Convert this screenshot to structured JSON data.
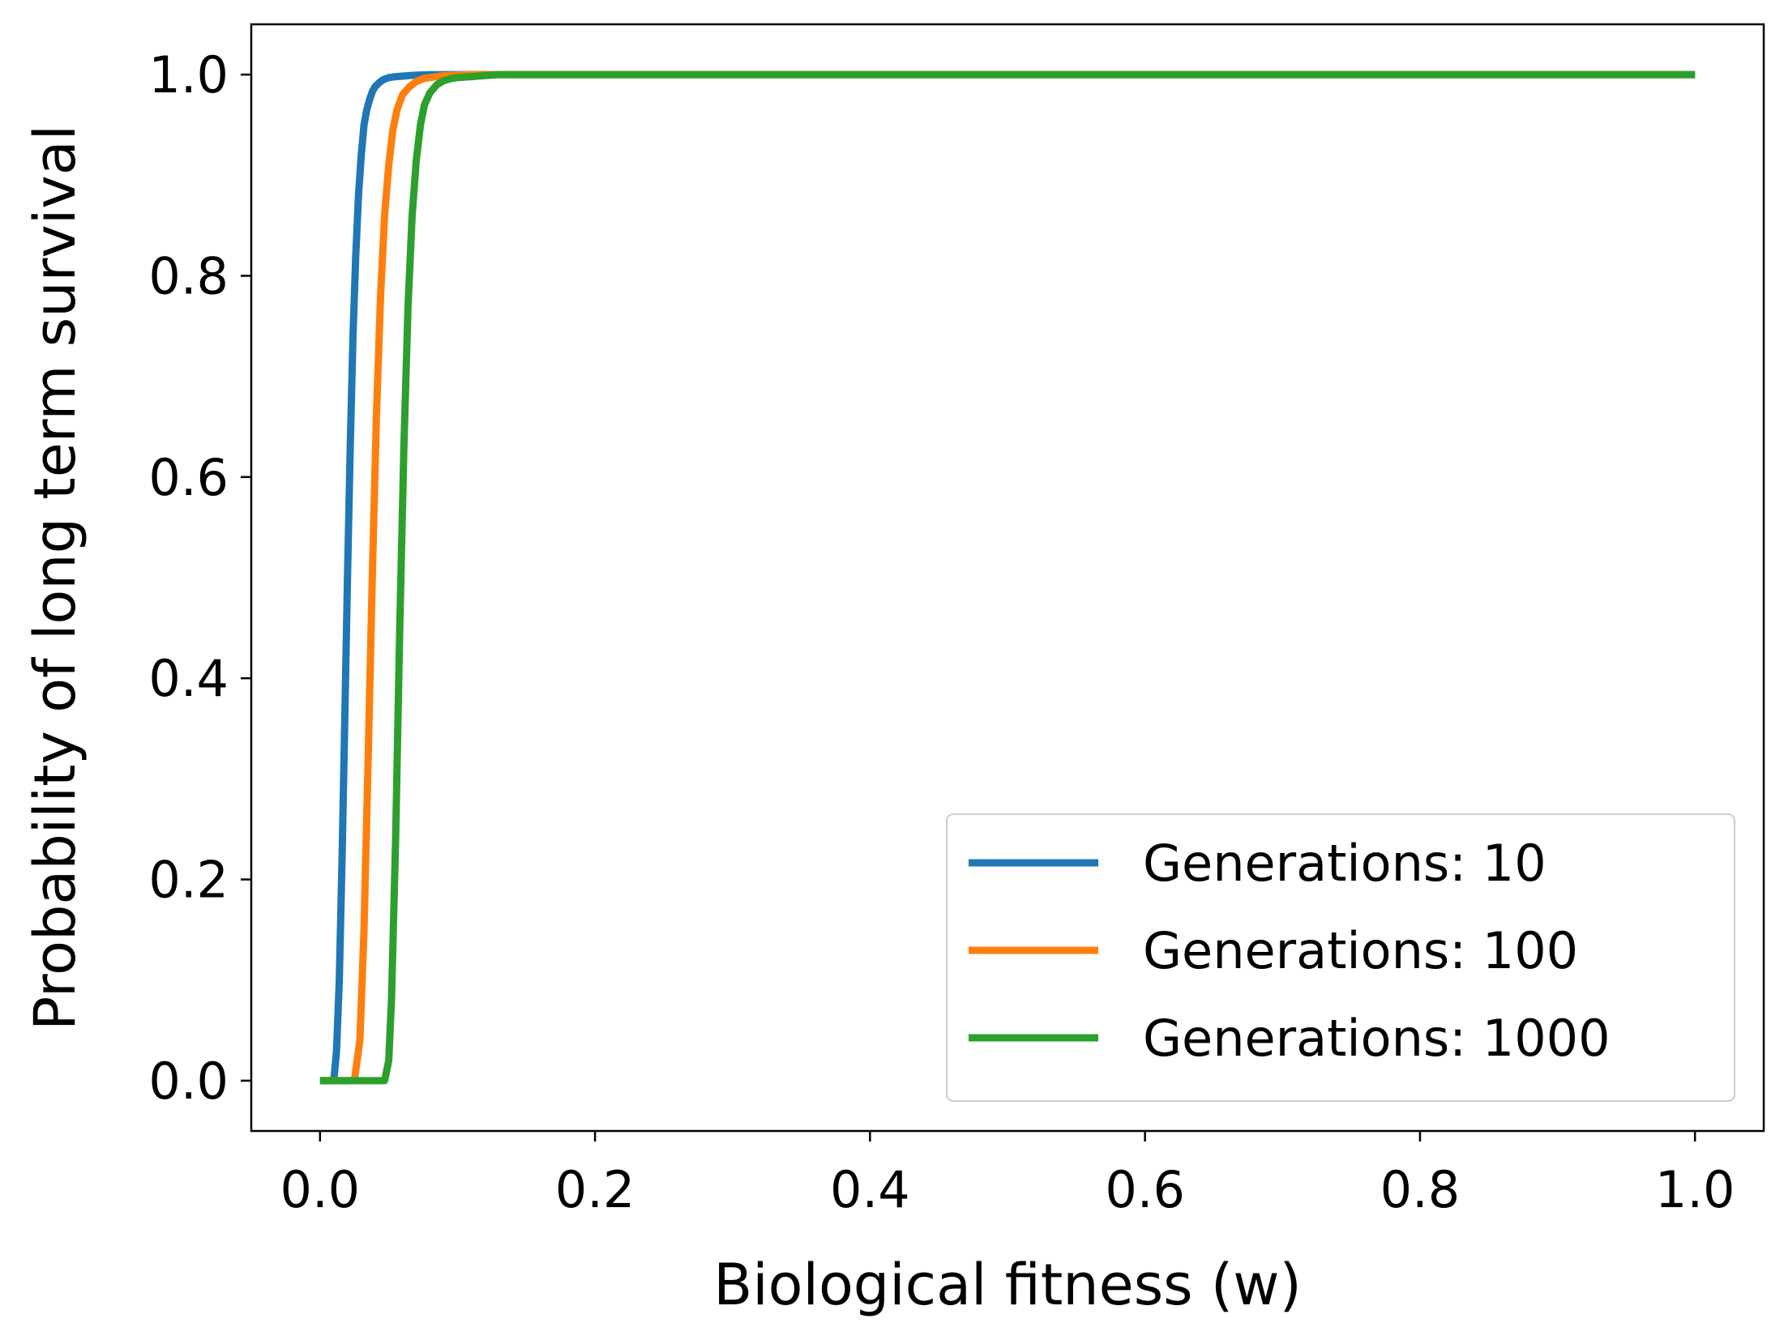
{
  "chart_data": {
    "type": "line",
    "title": "",
    "xlabel": "Biological fitness (w)",
    "ylabel": "Probability of long term survival",
    "xlim": [
      -0.05,
      1.05
    ],
    "ylim": [
      -0.05,
      1.05
    ],
    "xticks": [
      0.0,
      0.2,
      0.4,
      0.6,
      0.8,
      1.0
    ],
    "xtick_labels": [
      "0.0",
      "0.2",
      "0.4",
      "0.6",
      "0.8",
      "1.0"
    ],
    "yticks": [
      0.0,
      0.2,
      0.4,
      0.6,
      0.8,
      1.0
    ],
    "ytick_labels": [
      "0.0",
      "0.2",
      "0.4",
      "0.6",
      "0.8",
      "1.0"
    ],
    "grid": false,
    "legend_position": "lower-right",
    "series": [
      {
        "name": "Generations: 10",
        "color": "#1f77b4",
        "x": [
          0.0,
          0.005,
          0.01,
          0.012,
          0.014,
          0.016,
          0.018,
          0.02,
          0.022,
          0.024,
          0.026,
          0.028,
          0.03,
          0.032,
          0.034,
          0.036,
          0.038,
          0.04,
          0.043,
          0.046,
          0.05,
          0.055,
          0.06,
          0.065,
          0.07,
          0.08,
          0.09,
          0.1,
          0.12,
          0.15,
          0.3,
          0.5,
          0.7,
          1.0
        ],
        "y": [
          0.0,
          0.0,
          0.0,
          0.03,
          0.1,
          0.22,
          0.36,
          0.5,
          0.63,
          0.74,
          0.82,
          0.88,
          0.92,
          0.95,
          0.965,
          0.975,
          0.983,
          0.988,
          0.992,
          0.995,
          0.997,
          0.998,
          0.9985,
          0.999,
          0.9995,
          0.9998,
          1.0,
          1.0,
          1.0,
          1.0,
          1.0,
          1.0,
          1.0,
          1.0
        ]
      },
      {
        "name": "Generations: 100",
        "color": "#ff7f0e",
        "x": [
          0.0,
          0.01,
          0.02,
          0.025,
          0.029,
          0.032,
          0.035,
          0.038,
          0.041,
          0.044,
          0.047,
          0.05,
          0.053,
          0.056,
          0.06,
          0.065,
          0.07,
          0.075,
          0.08,
          0.085,
          0.09,
          0.1,
          0.11,
          0.12,
          0.14,
          0.2,
          0.4,
          0.7,
          1.0
        ],
        "y": [
          0.0,
          0.0,
          0.0,
          0.0,
          0.04,
          0.15,
          0.32,
          0.5,
          0.66,
          0.78,
          0.86,
          0.91,
          0.945,
          0.965,
          0.98,
          0.988,
          0.993,
          0.996,
          0.997,
          0.998,
          0.999,
          0.9995,
          1.0,
          1.0,
          1.0,
          1.0,
          1.0,
          1.0,
          1.0
        ]
      },
      {
        "name": "Generations: 1000",
        "color": "#2ca02c",
        "x": [
          0.0,
          0.02,
          0.04,
          0.047,
          0.05,
          0.052,
          0.055,
          0.058,
          0.061,
          0.064,
          0.067,
          0.07,
          0.073,
          0.076,
          0.08,
          0.085,
          0.09,
          0.095,
          0.1,
          0.11,
          0.12,
          0.13,
          0.14,
          0.2,
          0.4,
          0.7,
          1.0
        ],
        "y": [
          0.0,
          0.0,
          0.0,
          0.0,
          0.02,
          0.08,
          0.24,
          0.45,
          0.63,
          0.77,
          0.86,
          0.915,
          0.95,
          0.97,
          0.982,
          0.99,
          0.994,
          0.996,
          0.997,
          0.998,
          0.999,
          1.0,
          1.0,
          1.0,
          1.0,
          1.0,
          1.0
        ]
      }
    ]
  }
}
